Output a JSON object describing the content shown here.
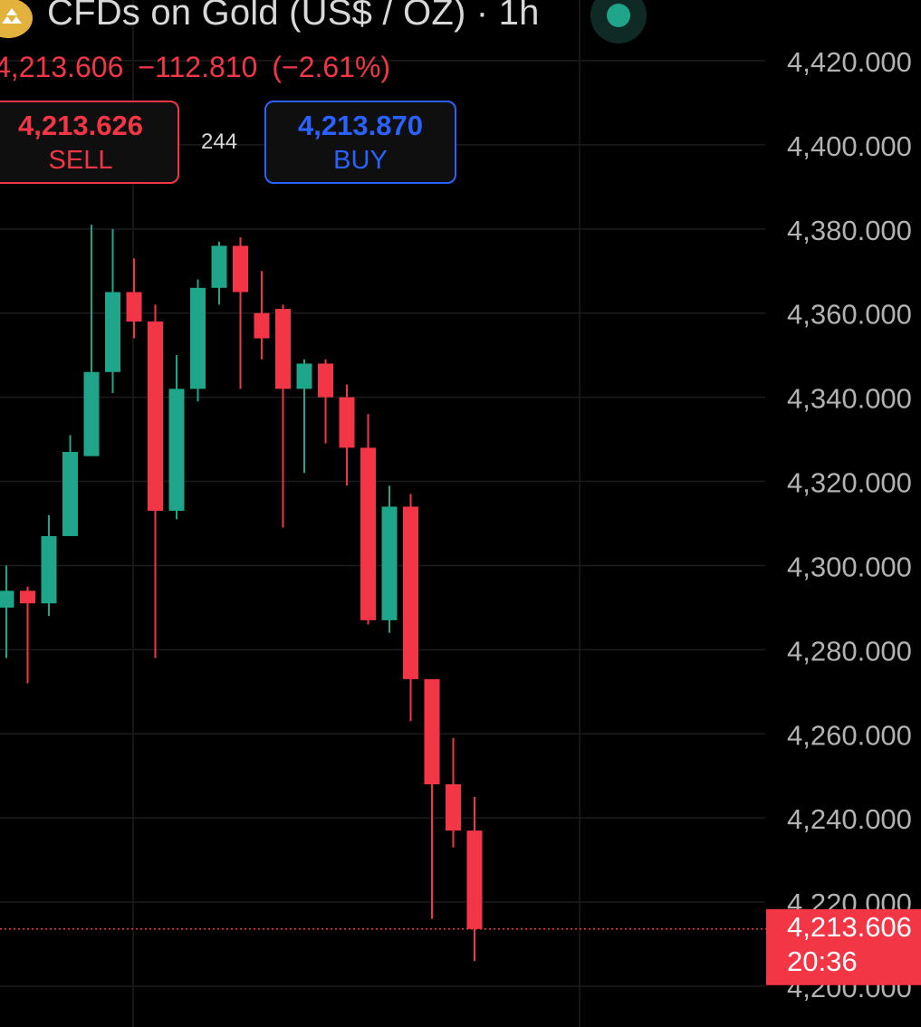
{
  "header": {
    "title": "CFDs on Gold (US$ / OZ) · 1h",
    "last_price": "4,213.606",
    "change": "−112.810",
    "change_pct": "(−2.61%)"
  },
  "trade": {
    "sell_price": "4,213.626",
    "sell_label": "SELL",
    "spread": "244",
    "buy_price": "4,213.870",
    "buy_label": "BUY"
  },
  "colors": {
    "up": "#1ea58a",
    "down": "#f23645",
    "grid": "#1c1c1c",
    "axis_text": "#b2b2b2",
    "background": "#000000"
  },
  "chart_data": {
    "type": "candlestick",
    "symbol": "CFDs on Gold (US$ / OZ)",
    "interval": "1h",
    "y_axis": {
      "ticks": [
        "4,420.000",
        "4,400.000",
        "4,380.000",
        "4,360.000",
        "4,340.000",
        "4,320.000",
        "4,300.000",
        "4,280.000",
        "4,260.000",
        "4,240.000",
        "4,220.000",
        "4,200.000"
      ],
      "min": 4200,
      "max": 4420,
      "position": "right"
    },
    "grid": true,
    "current_price": {
      "value": 4213.606,
      "label": "4,213.606",
      "countdown": "20:36"
    },
    "candles": [
      {
        "open": 4290,
        "high": 4300,
        "low": 4278,
        "close": 4294
      },
      {
        "open": 4294,
        "high": 4295,
        "low": 4272,
        "close": 4291
      },
      {
        "open": 4291,
        "high": 4312,
        "low": 4288,
        "close": 4307
      },
      {
        "open": 4307,
        "high": 4331,
        "low": 4307,
        "close": 4327
      },
      {
        "open": 4326,
        "high": 4381,
        "low": 4326,
        "close": 4346
      },
      {
        "open": 4346,
        "high": 4380,
        "low": 4341,
        "close": 4365
      },
      {
        "open": 4365,
        "high": 4373,
        "low": 4354,
        "close": 4358
      },
      {
        "open": 4358,
        "high": 4362,
        "low": 4278,
        "close": 4313
      },
      {
        "open": 4313,
        "high": 4350,
        "low": 4311,
        "close": 4342
      },
      {
        "open": 4342,
        "high": 4368,
        "low": 4339,
        "close": 4366
      },
      {
        "open": 4366,
        "high": 4377,
        "low": 4362,
        "close": 4376
      },
      {
        "open": 4376,
        "high": 4378,
        "low": 4342,
        "close": 4365
      },
      {
        "open": 4360,
        "high": 4370,
        "low": 4349,
        "close": 4354
      },
      {
        "open": 4361,
        "high": 4362,
        "low": 4309,
        "close": 4342
      },
      {
        "open": 4342,
        "high": 4349,
        "low": 4322,
        "close": 4348
      },
      {
        "open": 4348,
        "high": 4349,
        "low": 4329,
        "close": 4340
      },
      {
        "open": 4340,
        "high": 4343,
        "low": 4319,
        "close": 4328
      },
      {
        "open": 4328,
        "high": 4336,
        "low": 4286,
        "close": 4287
      },
      {
        "open": 4287,
        "high": 4319,
        "low": 4284,
        "close": 4314
      },
      {
        "open": 4314,
        "high": 4317,
        "low": 4263,
        "close": 4273
      },
      {
        "open": 4273,
        "high": 4273,
        "low": 4216,
        "close": 4248
      },
      {
        "open": 4248,
        "high": 4259,
        "low": 4233,
        "close": 4237
      },
      {
        "open": 4237,
        "high": 4245,
        "low": 4206,
        "close": 4213.6
      }
    ]
  }
}
